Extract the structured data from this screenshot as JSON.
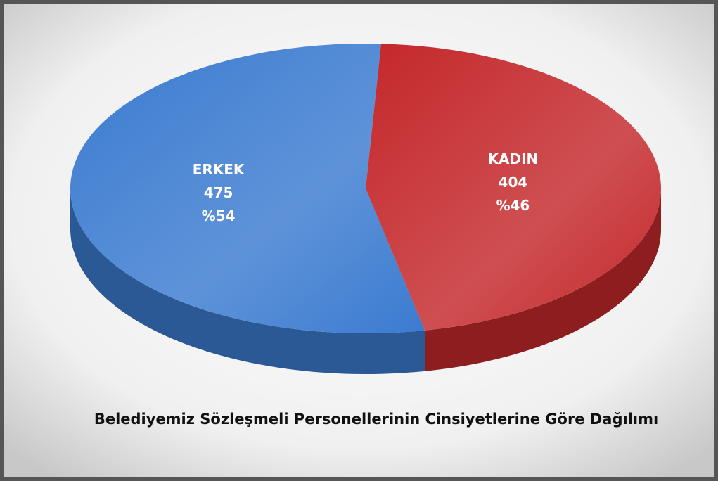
{
  "chart_data": {
    "type": "pie",
    "title": "Belediyemiz Sözleşmeli Personellerinin Cinsiyetlerine Göre Dağılımı",
    "categories": [
      "ERKEK",
      "KADIN"
    ],
    "values": [
      475,
      404
    ],
    "percent_labels": [
      "%54",
      "%46"
    ],
    "colors": [
      "#3b7bd0",
      "#c4282b"
    ]
  }
}
